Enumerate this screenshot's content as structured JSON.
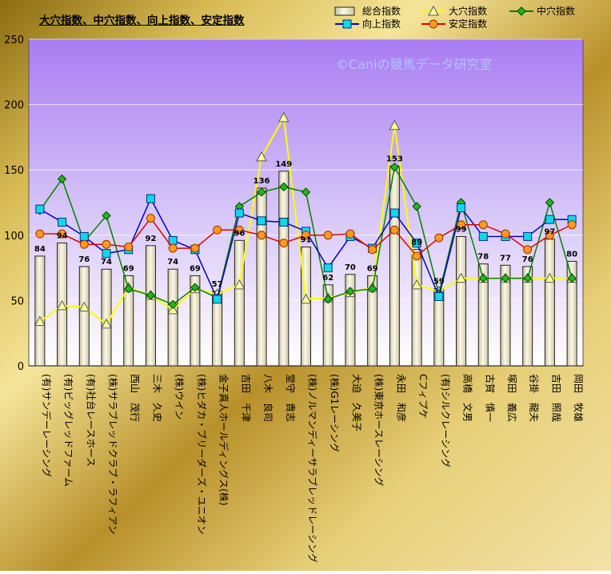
{
  "chart_data": {
    "type": "bar",
    "title": "大穴指数、中穴指数、向上指数、安定指数",
    "watermark": "©Caniの競馬データ研究室",
    "ylim": [
      0,
      250
    ],
    "yticks": [
      0,
      50,
      100,
      150,
      200,
      250
    ],
    "grid": true,
    "legend_position": "top-right",
    "categories": [
      "(有)サンデーレーシング",
      "(有)ビッグレッドファーム",
      "(有)社台レースホース",
      "(株)サラブレッドクラブ・ラフィアン",
      "西山　茂行",
      "三木　久史",
      "(株)ウイン",
      "(株)ヒダカ・ブリーダーズ・ユニオン",
      "金子真人ホールディングス(株)",
      "吉田　千津",
      "八木　良司",
      "堂守　貴志",
      "(株)ノルマンディーサラブレッドレーシング",
      "(株)G1レーシング",
      "大迫　久美子",
      "(株)東京ホースレーシング",
      "永田　和彦",
      "Cフィプケ",
      "(有)シルクレーシング",
      "高橋　文男",
      "古賀　慎一",
      "塚田　義広",
      "谷掛　龍夫",
      "吉田　照哉",
      "岡田　牧雄"
    ],
    "series": [
      {
        "name": "総合指数",
        "kind": "bar",
        "color": "#f2eed2",
        "values": [
          84,
          94,
          76,
          74,
          69,
          92,
          74,
          69,
          57,
          96,
          136,
          149,
          91,
          62,
          70,
          69,
          153,
          89,
          59,
          99,
          78,
          77,
          76,
          97,
          80
        ]
      },
      {
        "name": "大穴指数",
        "kind": "line",
        "color": "#ffff00",
        "marker": "triangle",
        "values": [
          34,
          46,
          45,
          32,
          60,
          54,
          43,
          59,
          55,
          62,
          160,
          190,
          51,
          52,
          56,
          60,
          184,
          62,
          57,
          67,
          67,
          67,
          67,
          67,
          67
        ]
      },
      {
        "name": "中穴指数",
        "kind": "line",
        "color": "#008000",
        "marker": "diamond",
        "values": [
          119,
          143,
          95,
          115,
          59,
          54,
          47,
          60,
          52,
          122,
          133,
          137,
          133,
          51,
          57,
          59,
          152,
          122,
          55,
          125,
          67,
          67,
          67,
          125,
          67
        ]
      },
      {
        "name": "向上指数",
        "kind": "line",
        "color": "#0000c8",
        "marker": "square",
        "values": [
          120,
          110,
          99,
          86,
          89,
          128,
          96,
          89,
          51,
          117,
          111,
          110,
          103,
          75,
          99,
          90,
          117,
          94,
          53,
          121,
          99,
          99,
          99,
          112,
          112
        ]
      },
      {
        "name": "安定指数",
        "kind": "line",
        "color": "#e00000",
        "marker": "circle",
        "values": [
          101,
          101,
          93,
          93,
          91,
          113,
          90,
          90,
          104,
          104,
          100,
          94,
          100,
          100,
          101,
          89,
          104,
          84,
          98,
          108,
          108,
          101,
          89,
          100,
          108
        ]
      }
    ]
  }
}
